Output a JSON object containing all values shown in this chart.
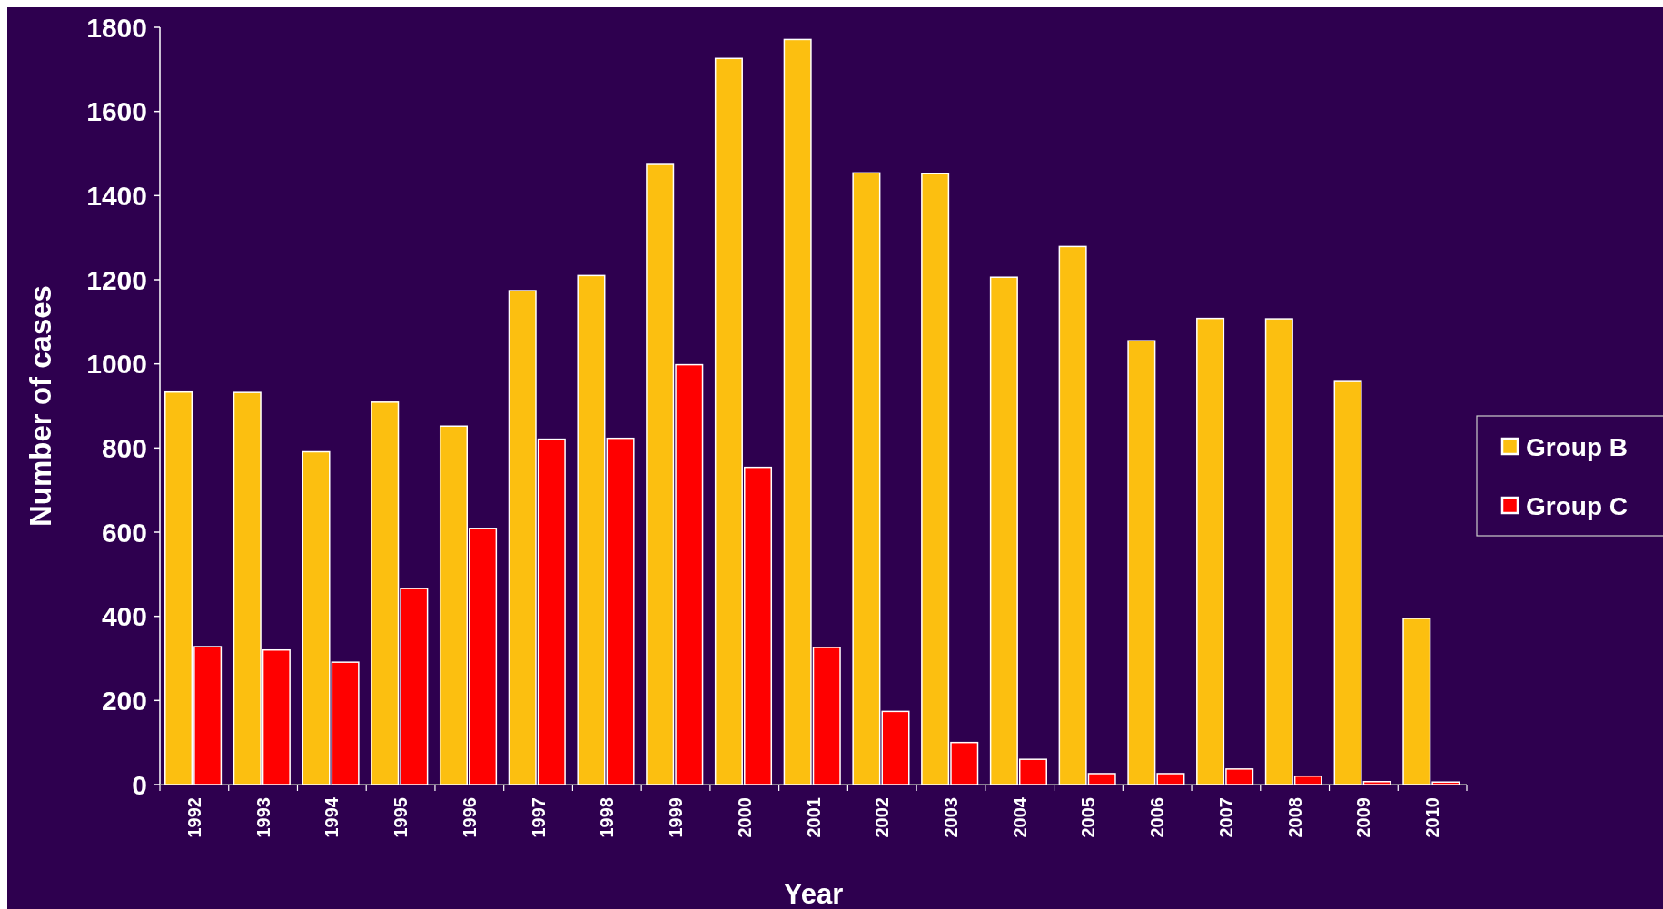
{
  "chart_data": {
    "type": "bar",
    "xlabel": "Year",
    "ylabel": "Number of cases",
    "categories": [
      "1992",
      "1993",
      "1994",
      "1995",
      "1996",
      "1997",
      "1998",
      "1999",
      "2000",
      "2001",
      "2002",
      "2003",
      "2004",
      "2005",
      "2006",
      "2007",
      "2008",
      "2009",
      "2010"
    ],
    "series": [
      {
        "name": "Group B",
        "color": "#fcbf10",
        "values": [
          933,
          932,
          791,
          909,
          852,
          1174,
          1210,
          1474,
          1726,
          1771,
          1454,
          1452,
          1206,
          1279,
          1055,
          1108,
          1107,
          958,
          395
        ]
      },
      {
        "name": "Group C",
        "color": "#ff0000",
        "values": [
          328,
          320,
          291,
          466,
          609,
          821,
          823,
          998,
          754,
          326,
          174,
          100,
          60,
          26,
          26,
          37,
          20,
          7,
          6
        ]
      }
    ],
    "ylim": [
      0,
      1800
    ],
    "yticks": [
      0,
      200,
      400,
      600,
      800,
      1000,
      1200,
      1400,
      1600,
      1800
    ],
    "grid": false,
    "legend": "right"
  }
}
